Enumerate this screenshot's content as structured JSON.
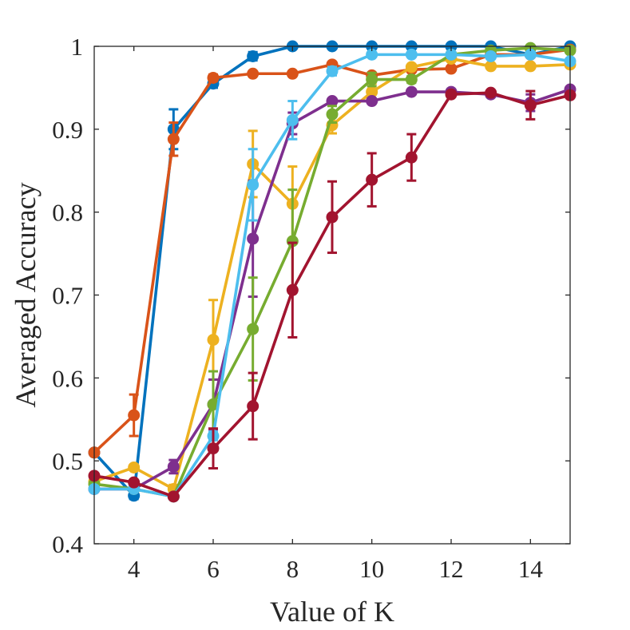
{
  "chart_data": {
    "type": "line",
    "title": "",
    "xlabel": "Value of K",
    "ylabel": "Averaged Accuracy",
    "xlim": [
      3,
      15
    ],
    "ylim": [
      0.4,
      1
    ],
    "x_ticks": [
      4,
      6,
      8,
      10,
      12,
      14
    ],
    "y_ticks": [
      0.4,
      0.5,
      0.6,
      0.7,
      0.8,
      0.9,
      1
    ],
    "y_tick_labels": [
      "0.4",
      "0.5",
      "0.6",
      "0.7",
      "0.8",
      "0.9",
      "1"
    ],
    "grid": false,
    "x": [
      3,
      4,
      5,
      6,
      7,
      8,
      9,
      10,
      11,
      12,
      13,
      14,
      15
    ],
    "series": [
      {
        "color": "#0072BD",
        "values": [
          0.51,
          0.458,
          0.9,
          0.955,
          0.988,
          1.0,
          1.0,
          1.0,
          1.0,
          1.0,
          1.0,
          0.99,
          1.0
        ],
        "errors": [
          0,
          0.004,
          0.024,
          0.005,
          0.005,
          0,
          0,
          0,
          0,
          0,
          0,
          0,
          0
        ]
      },
      {
        "color": "#D95319",
        "values": [
          0.51,
          0.555,
          0.888,
          0.962,
          0.967,
          0.967,
          0.978,
          0.965,
          0.972,
          0.973,
          0.99,
          0.99,
          0.996
        ],
        "errors": [
          0,
          0.025,
          0.02,
          0.004,
          0,
          0,
          0,
          0,
          0,
          0,
          0,
          0,
          0
        ]
      },
      {
        "color": "#EDB120",
        "values": [
          0.475,
          0.492,
          0.466,
          0.646,
          0.858,
          0.81,
          0.905,
          0.945,
          0.975,
          0.985,
          0.976,
          0.976,
          0.978
        ],
        "errors": [
          0,
          0,
          0.005,
          0.048,
          0.04,
          0.045,
          0.01,
          0.01,
          0,
          0,
          0,
          0,
          0
        ]
      },
      {
        "color": "#7E2F8E",
        "values": [
          0.466,
          0.466,
          0.493,
          0.568,
          0.768,
          0.907,
          0.934,
          0.934,
          0.945,
          0.945,
          0.942,
          0.932,
          0.948
        ],
        "errors": [
          0,
          0,
          0.008,
          0.03,
          0.07,
          0.013,
          0,
          0,
          0,
          0,
          0,
          0.01,
          0
        ]
      },
      {
        "color": "#77AC30",
        "values": [
          0.472,
          0.466,
          0.457,
          0.568,
          0.659,
          0.765,
          0.918,
          0.96,
          0.96,
          0.99,
          0.995,
          0.998,
          0.995
        ],
        "errors": [
          0,
          0,
          0,
          0.04,
          0.062,
          0.062,
          0.01,
          0.008,
          0.004,
          0,
          0,
          0,
          0
        ]
      },
      {
        "color": "#4DBEEE",
        "values": [
          0.466,
          0.466,
          0.457,
          0.53,
          0.833,
          0.911,
          0.97,
          0.99,
          0.99,
          0.99,
          0.988,
          0.99,
          0.982
        ],
        "errors": [
          0,
          0,
          0,
          0.005,
          0.043,
          0.023,
          0.005,
          0,
          0,
          0,
          0,
          0,
          0
        ]
      },
      {
        "color": "#A2142F",
        "values": [
          0.482,
          0.474,
          0.457,
          0.515,
          0.566,
          0.706,
          0.794,
          0.839,
          0.866,
          0.942,
          0.944,
          0.929,
          0.941
        ],
        "errors": [
          0,
          0,
          0,
          0.024,
          0.04,
          0.057,
          0.043,
          0.032,
          0.028,
          0,
          0,
          0.017,
          0
        ]
      }
    ]
  }
}
